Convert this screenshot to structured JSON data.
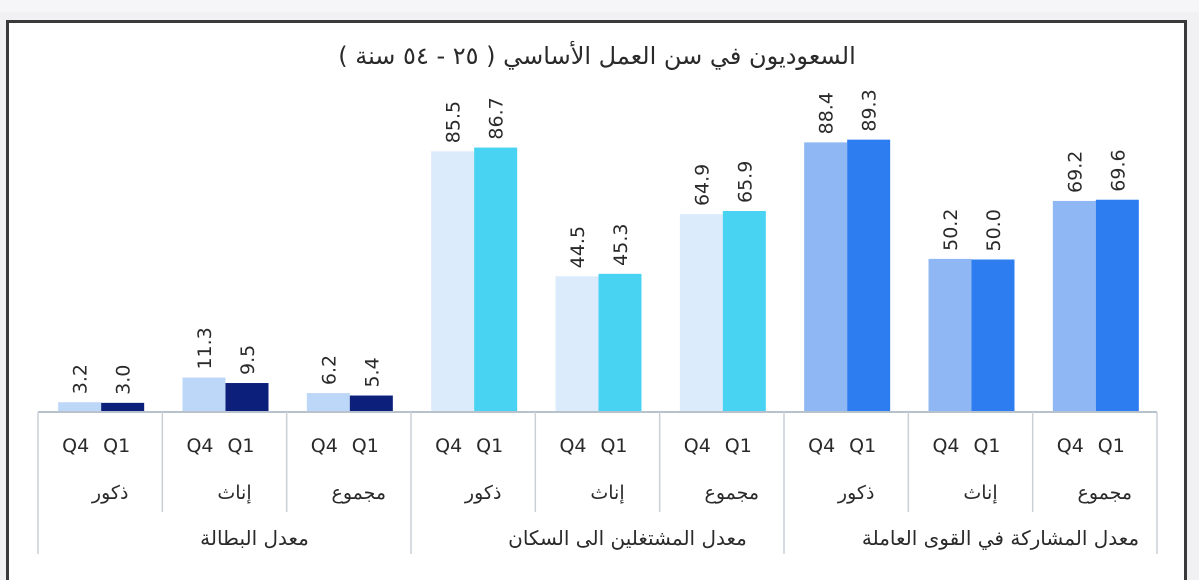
{
  "chart_data": {
    "type": "bar",
    "title": "السعوديون في سن العمل الأساسي ( ٢٥ - ٥٤ سنة )",
    "series": [
      {
        "name": "Q4",
        "values": [
          3.2,
          11.3,
          6.2,
          85.5,
          44.5,
          64.9,
          88.4,
          50.2,
          69.2
        ]
      },
      {
        "name": "Q1",
        "values": [
          3.0,
          9.5,
          5.4,
          86.7,
          45.3,
          65.9,
          89.3,
          50.0,
          69.6
        ]
      }
    ],
    "value_labels": [
      {
        "q4": "3.2",
        "q1": "3.0"
      },
      {
        "q4": "11.3",
        "q1": "9.5"
      },
      {
        "q4": "6.2",
        "q1": "5.4"
      },
      {
        "q4": "85.5",
        "q1": "86.7"
      },
      {
        "q4": "44.5",
        "q1": "45.3"
      },
      {
        "q4": "64.9",
        "q1": "65.9"
      },
      {
        "q4": "88.4",
        "q1": "89.3"
      },
      {
        "q4": "50.2",
        "q1": "50.0"
      },
      {
        "q4": "69.2",
        "q1": "69.6"
      }
    ],
    "categories": [
      "ذكور",
      "إناث",
      "مجموع",
      "ذكور",
      "إناث",
      "مجموع",
      "ذكور",
      "إناث",
      "مجموع"
    ],
    "groups": [
      {
        "label": "معدل البطالة",
        "colors": {
          "q4": "#bcd7f7",
          "q1": "#0c1f7a"
        }
      },
      {
        "label": "معدل المشتغلين الى السكان",
        "colors": {
          "q4": "#dcebfb",
          "q1": "#48d3f2"
        }
      },
      {
        "label": "معدل المشاركة في القوى العاملة",
        "colors": {
          "q4": "#8fb7f4",
          "q1": "#2d7cf0"
        }
      }
    ],
    "quarter_labels": {
      "q4": "Q4",
      "q1": "Q1"
    },
    "ylim": [
      0,
      100
    ],
    "grid": false,
    "legend": "none"
  }
}
